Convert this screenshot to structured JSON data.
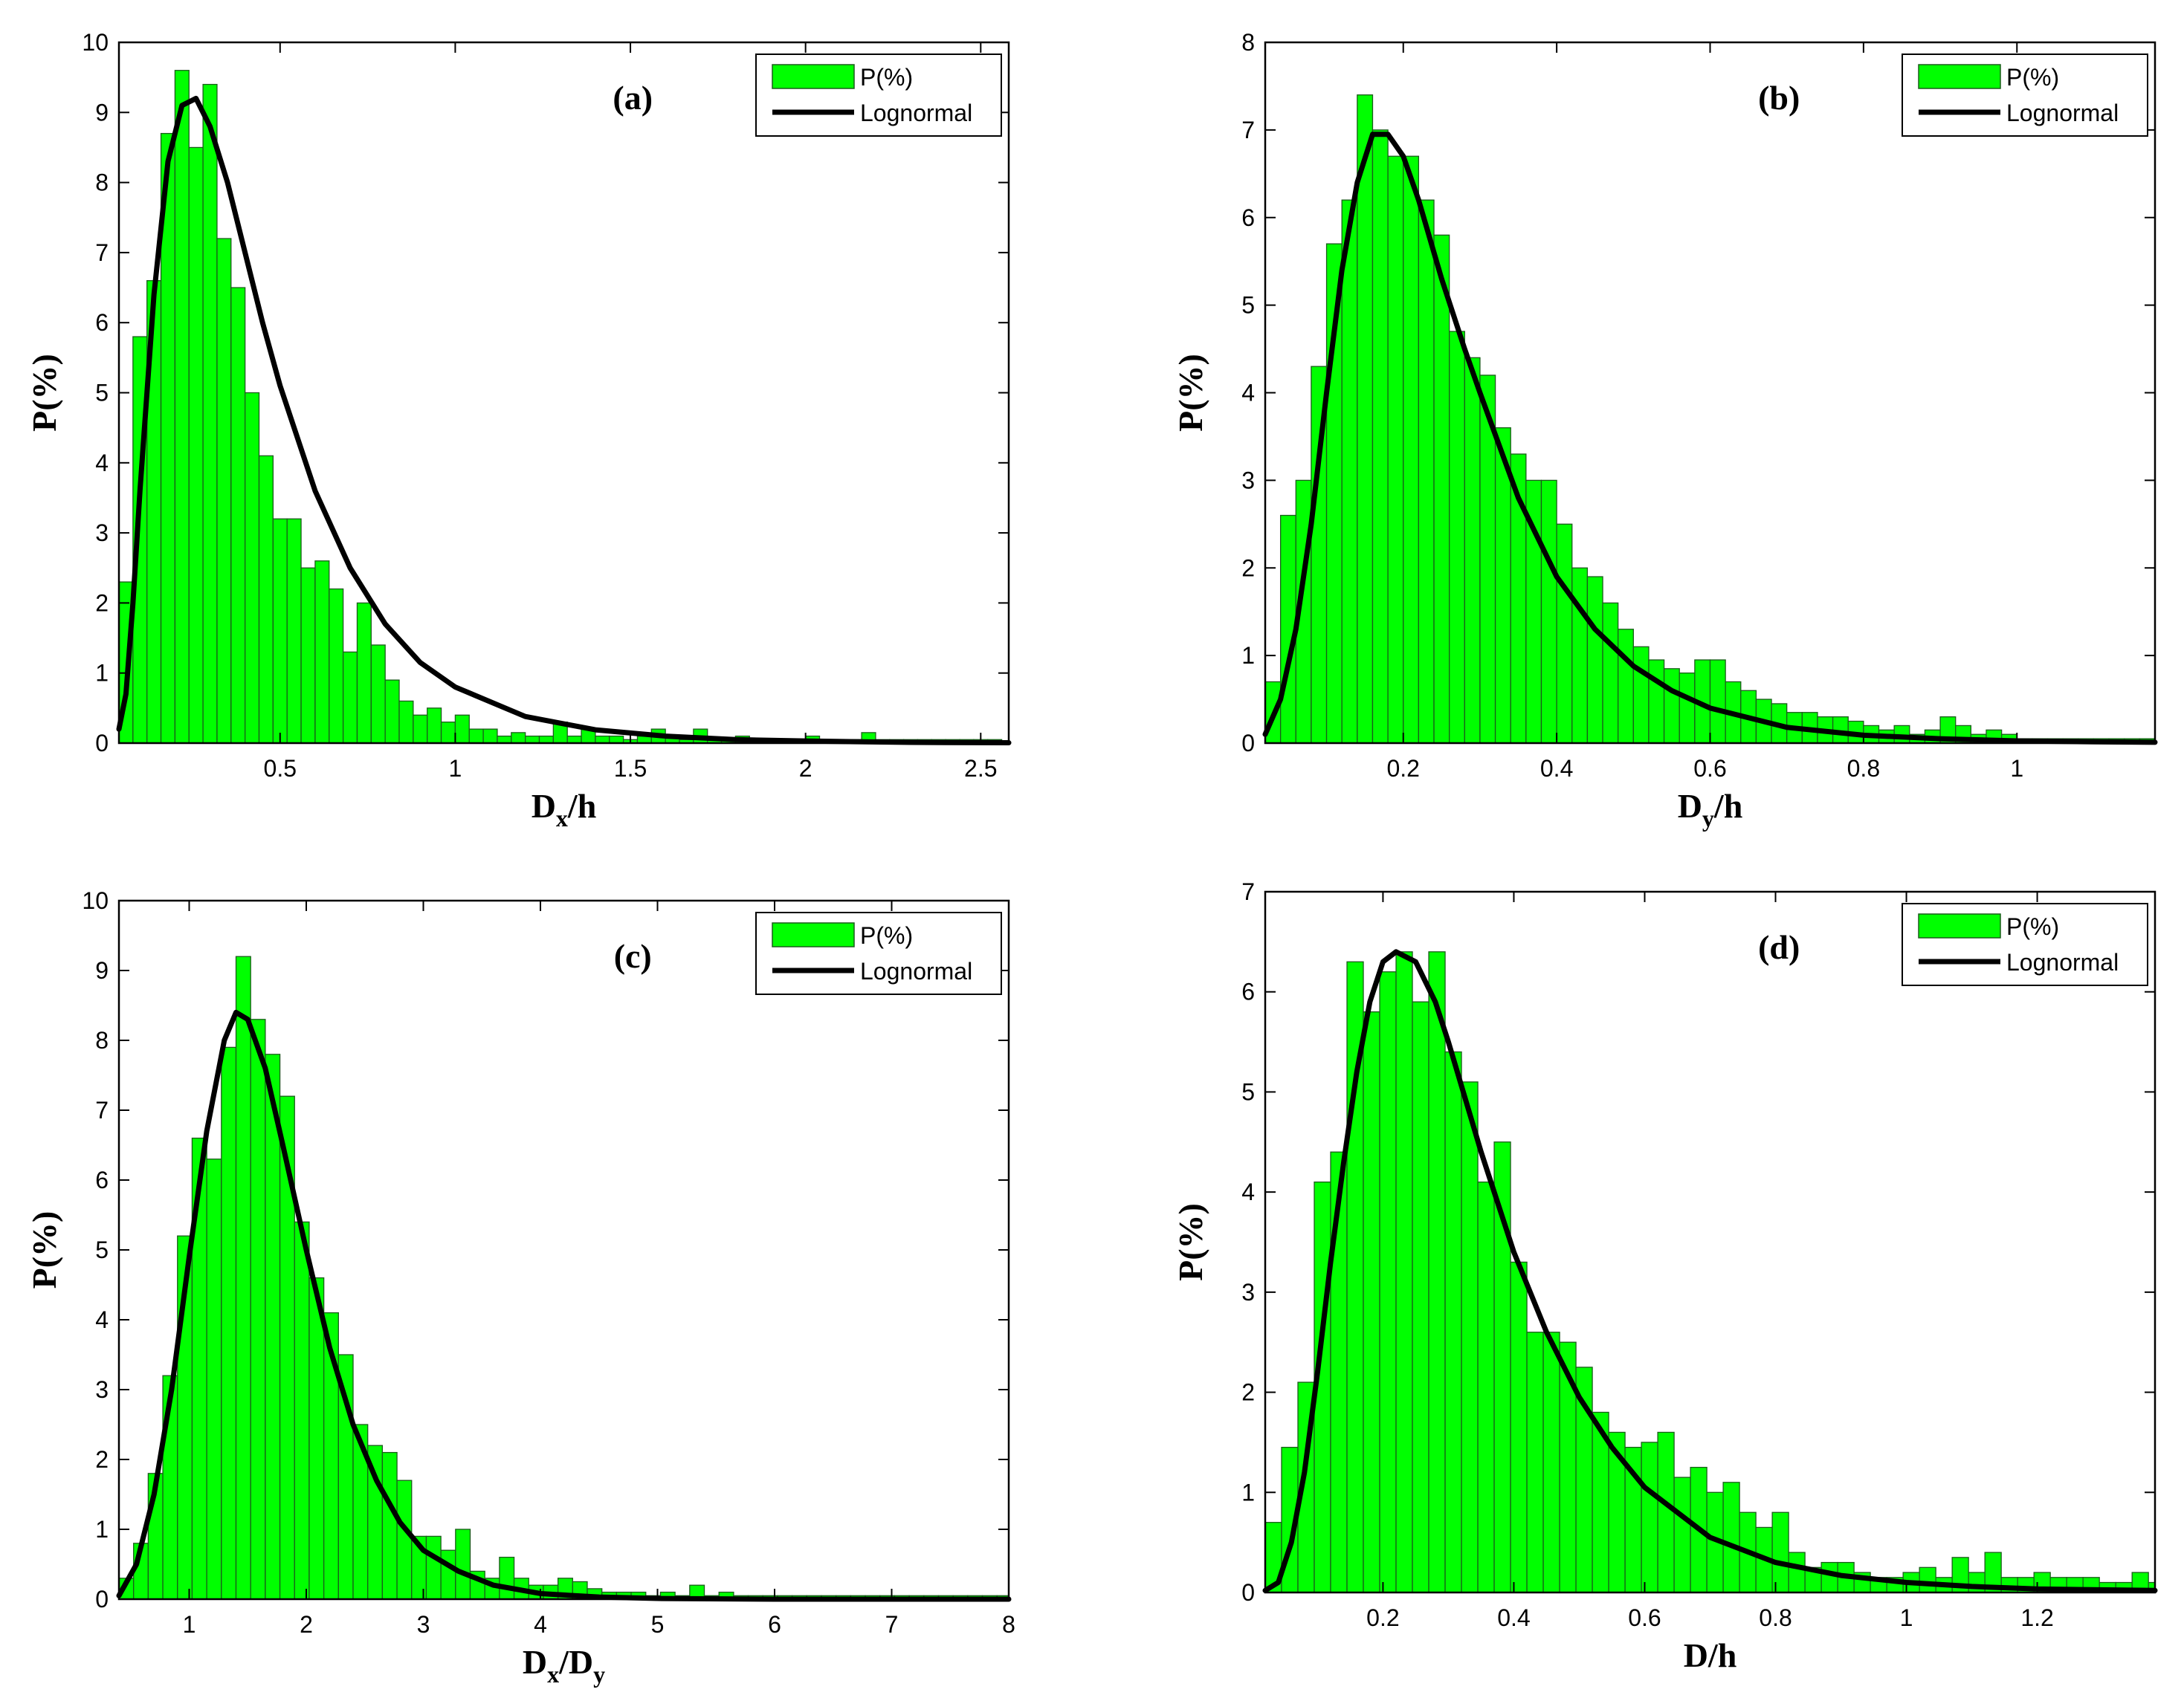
{
  "colors": {
    "bar_fill": "#00ff00",
    "bar_edge": "#1a5c1a",
    "curve": "#000000",
    "axis": "#000000"
  },
  "chart_data": [
    {
      "type": "bar",
      "panel_label": "(a)",
      "xlabel_main": "D",
      "xlabel_sub": "x",
      "xlabel_tail": "/h",
      "xlabel_sub2": "",
      "ylabel": "P(%)",
      "xlim": [
        0.04,
        2.58
      ],
      "ylim": [
        0,
        10
      ],
      "xticks": [
        0.5,
        1,
        1.5,
        2,
        2.5
      ],
      "xtick_labels": [
        "0.5",
        "1",
        "1.5",
        "2",
        "2.5"
      ],
      "yticks": [
        0,
        1,
        2,
        3,
        4,
        5,
        6,
        7,
        8,
        9,
        10
      ],
      "ytick_labels": [
        "0",
        "1",
        "2",
        "3",
        "4",
        "5",
        "6",
        "7",
        "8",
        "9",
        "10"
      ],
      "legend": {
        "bar_label": "P(%)",
        "line_label": "Lognormal",
        "position": "top-right"
      },
      "series": [
        {
          "name": "P(%)",
          "kind": "hist",
          "bin_start": 0.04,
          "bin_width": 0.04,
          "values": [
            2.3,
            5.8,
            6.6,
            8.7,
            9.6,
            8.5,
            9.4,
            7.2,
            6.5,
            5.0,
            4.1,
            3.2,
            3.2,
            2.5,
            2.6,
            2.2,
            1.3,
            2.0,
            1.4,
            0.9,
            0.6,
            0.4,
            0.5,
            0.3,
            0.4,
            0.2,
            0.2,
            0.1,
            0.15,
            0.1,
            0.1,
            0.3,
            0.1,
            0.2,
            0.1,
            0.1,
            0.05,
            0.1,
            0.2,
            0.1,
            0.05,
            0.2,
            0.05,
            0.05,
            0.1,
            0.05,
            0.05,
            0.05,
            0.05,
            0.1,
            0.05,
            0.05,
            0.05,
            0.15,
            0.05,
            0.05,
            0.05,
            0.05,
            0.05,
            0.05,
            0.05,
            0.05,
            0.05
          ]
        },
        {
          "name": "Lognormal",
          "kind": "line",
          "points": [
            [
              0.04,
              0.2
            ],
            [
              0.06,
              0.7
            ],
            [
              0.08,
              2.0
            ],
            [
              0.1,
              3.6
            ],
            [
              0.14,
              6.4
            ],
            [
              0.18,
              8.3
            ],
            [
              0.22,
              9.1
            ],
            [
              0.26,
              9.2
            ],
            [
              0.3,
              8.8
            ],
            [
              0.35,
              8.0
            ],
            [
              0.4,
              7.0
            ],
            [
              0.45,
              6.0
            ],
            [
              0.5,
              5.1
            ],
            [
              0.6,
              3.6
            ],
            [
              0.7,
              2.5
            ],
            [
              0.8,
              1.7
            ],
            [
              0.9,
              1.15
            ],
            [
              1.0,
              0.8
            ],
            [
              1.2,
              0.38
            ],
            [
              1.4,
              0.19
            ],
            [
              1.6,
              0.1
            ],
            [
              1.8,
              0.05
            ],
            [
              2.0,
              0.03
            ],
            [
              2.3,
              0.01
            ],
            [
              2.58,
              0.005
            ]
          ]
        }
      ]
    },
    {
      "type": "bar",
      "panel_label": "(b)",
      "xlabel_main": "D",
      "xlabel_sub": "y",
      "xlabel_tail": "/h",
      "xlabel_sub2": "",
      "ylabel": "P(%)",
      "xlim": [
        0.02,
        1.18
      ],
      "ylim": [
        0,
        8
      ],
      "xticks": [
        0.2,
        0.4,
        0.6,
        0.8,
        1
      ],
      "xtick_labels": [
        "0.2",
        "0.4",
        "0.6",
        "0.8",
        "1"
      ],
      "yticks": [
        0,
        1,
        2,
        3,
        4,
        5,
        6,
        7,
        8
      ],
      "ytick_labels": [
        "0",
        "1",
        "2",
        "3",
        "4",
        "5",
        "6",
        "7",
        "8"
      ],
      "legend": {
        "bar_label": "P(%)",
        "line_label": "Lognormal",
        "position": "top-right"
      },
      "series": [
        {
          "name": "P(%)",
          "kind": "hist",
          "bin_start": 0.02,
          "bin_width": 0.02,
          "values": [
            0.7,
            2.6,
            3.0,
            4.3,
            5.7,
            6.2,
            7.4,
            7.0,
            6.7,
            6.7,
            6.2,
            5.8,
            4.7,
            4.4,
            4.2,
            3.6,
            3.3,
            3.0,
            3.0,
            2.5,
            2.0,
            1.9,
            1.6,
            1.3,
            1.1,
            0.95,
            0.85,
            0.8,
            0.95,
            0.95,
            0.7,
            0.6,
            0.5,
            0.45,
            0.35,
            0.35,
            0.3,
            0.3,
            0.25,
            0.2,
            0.15,
            0.2,
            0.1,
            0.15,
            0.3,
            0.2,
            0.1,
            0.15,
            0.1,
            0.05,
            0.05,
            0.05,
            0.05,
            0.05,
            0.05,
            0.05,
            0.05,
            0.05
          ]
        },
        {
          "name": "Lognormal",
          "kind": "line",
          "points": [
            [
              0.02,
              0.1
            ],
            [
              0.04,
              0.5
            ],
            [
              0.06,
              1.3
            ],
            [
              0.08,
              2.5
            ],
            [
              0.1,
              4.0
            ],
            [
              0.12,
              5.4
            ],
            [
              0.14,
              6.4
            ],
            [
              0.16,
              6.95
            ],
            [
              0.18,
              6.95
            ],
            [
              0.2,
              6.7
            ],
            [
              0.22,
              6.2
            ],
            [
              0.25,
              5.3
            ],
            [
              0.28,
              4.5
            ],
            [
              0.3,
              4.0
            ],
            [
              0.35,
              2.8
            ],
            [
              0.4,
              1.9
            ],
            [
              0.45,
              1.3
            ],
            [
              0.5,
              0.88
            ],
            [
              0.55,
              0.6
            ],
            [
              0.6,
              0.4
            ],
            [
              0.7,
              0.18
            ],
            [
              0.8,
              0.09
            ],
            [
              0.9,
              0.05
            ],
            [
              1.0,
              0.025
            ],
            [
              1.1,
              0.015
            ],
            [
              1.18,
              0.01
            ]
          ]
        }
      ]
    },
    {
      "type": "bar",
      "panel_label": "(c)",
      "xlabel_main": "D",
      "xlabel_sub": "x",
      "xlabel_tail": "/D",
      "xlabel_sub2": "y",
      "ylabel": "P(%)",
      "xlim": [
        0.4,
        8
      ],
      "ylim": [
        0,
        10
      ],
      "xticks": [
        1,
        2,
        3,
        4,
        5,
        6,
        7,
        8
      ],
      "xtick_labels": [
        "1",
        "2",
        "3",
        "4",
        "5",
        "6",
        "7",
        "8"
      ],
      "yticks": [
        0,
        1,
        2,
        3,
        4,
        5,
        6,
        7,
        8,
        9,
        10
      ],
      "ytick_labels": [
        "0",
        "1",
        "2",
        "3",
        "4",
        "5",
        "6",
        "7",
        "8",
        "9",
        "10"
      ],
      "legend": {
        "bar_label": "P(%)",
        "line_label": "Lognormal",
        "position": "top-right"
      },
      "series": [
        {
          "name": "P(%)",
          "kind": "hist",
          "bin_start": 0.4,
          "bin_width": 0.125,
          "values": [
            0.3,
            0.8,
            1.8,
            3.2,
            5.2,
            6.6,
            6.3,
            7.9,
            9.2,
            8.3,
            7.8,
            7.2,
            5.4,
            4.6,
            4.1,
            3.5,
            2.5,
            2.2,
            2.1,
            1.7,
            0.9,
            0.9,
            0.7,
            1.0,
            0.4,
            0.3,
            0.6,
            0.3,
            0.2,
            0.2,
            0.3,
            0.25,
            0.15,
            0.1,
            0.1,
            0.1,
            0.05,
            0.1,
            0.05,
            0.2,
            0.05,
            0.1,
            0.05,
            0.05,
            0.05,
            0.05,
            0.05,
            0.05,
            0.05,
            0.05,
            0.05,
            0.05,
            0.05,
            0.05,
            0.05,
            0.05,
            0.05,
            0.05,
            0.05,
            0.05,
            0.05
          ]
        },
        {
          "name": "Lognormal",
          "kind": "line",
          "points": [
            [
              0.4,
              0.05
            ],
            [
              0.55,
              0.5
            ],
            [
              0.7,
              1.5
            ],
            [
              0.85,
              3.0
            ],
            [
              1.0,
              4.9
            ],
            [
              1.15,
              6.7
            ],
            [
              1.3,
              8.0
            ],
            [
              1.4,
              8.4
            ],
            [
              1.5,
              8.3
            ],
            [
              1.65,
              7.6
            ],
            [
              1.8,
              6.5
            ],
            [
              2.0,
              5.0
            ],
            [
              2.2,
              3.6
            ],
            [
              2.4,
              2.5
            ],
            [
              2.6,
              1.7
            ],
            [
              2.8,
              1.1
            ],
            [
              3.0,
              0.7
            ],
            [
              3.3,
              0.4
            ],
            [
              3.6,
              0.2
            ],
            [
              4.0,
              0.08
            ],
            [
              4.5,
              0.03
            ],
            [
              5.0,
              0.01
            ],
            [
              6.0,
              0.0
            ],
            [
              8.0,
              0.0
            ]
          ]
        }
      ]
    },
    {
      "type": "bar",
      "panel_label": "(d)",
      "xlabel_main": "D/h",
      "xlabel_sub": "",
      "xlabel_tail": "",
      "xlabel_sub2": "",
      "ylabel": "P(%)",
      "xlim": [
        0.02,
        1.38
      ],
      "ylim": [
        0,
        7
      ],
      "xticks": [
        0.2,
        0.4,
        0.6,
        0.8,
        1,
        1.2
      ],
      "xtick_labels": [
        "0.2",
        "0.4",
        "0.6",
        "0.8",
        "1",
        "1.2"
      ],
      "yticks": [
        0,
        1,
        2,
        3,
        4,
        5,
        6,
        7
      ],
      "ytick_labels": [
        "0",
        "1",
        "2",
        "3",
        "4",
        "5",
        "6",
        "7"
      ],
      "legend": {
        "bar_label": "P(%)",
        "line_label": "Lognormal",
        "position": "top-right"
      },
      "series": [
        {
          "name": "P(%)",
          "kind": "hist",
          "bin_start": 0.02,
          "bin_width": 0.025,
          "values": [
            0.7,
            1.45,
            2.1,
            4.1,
            4.4,
            6.3,
            5.8,
            6.2,
            6.4,
            5.9,
            6.4,
            5.4,
            5.1,
            4.1,
            4.5,
            3.3,
            2.6,
            2.6,
            2.5,
            2.25,
            1.8,
            1.6,
            1.45,
            1.5,
            1.6,
            1.15,
            1.25,
            1.0,
            1.1,
            0.8,
            0.65,
            0.8,
            0.4,
            0.25,
            0.3,
            0.3,
            0.2,
            0.15,
            0.15,
            0.2,
            0.25,
            0.15,
            0.35,
            0.2,
            0.4,
            0.15,
            0.15,
            0.2,
            0.15,
            0.15,
            0.15,
            0.1,
            0.1,
            0.2,
            0.1,
            0.1,
            0.15
          ]
        },
        {
          "name": "Lognormal",
          "kind": "line",
          "points": [
            [
              0.02,
              0.02
            ],
            [
              0.04,
              0.1
            ],
            [
              0.06,
              0.5
            ],
            [
              0.08,
              1.2
            ],
            [
              0.1,
              2.2
            ],
            [
              0.12,
              3.3
            ],
            [
              0.14,
              4.3
            ],
            [
              0.16,
              5.2
            ],
            [
              0.18,
              5.9
            ],
            [
              0.2,
              6.3
            ],
            [
              0.22,
              6.4
            ],
            [
              0.25,
              6.3
            ],
            [
              0.28,
              5.9
            ],
            [
              0.3,
              5.5
            ],
            [
              0.35,
              4.4
            ],
            [
              0.4,
              3.4
            ],
            [
              0.45,
              2.6
            ],
            [
              0.5,
              1.95
            ],
            [
              0.55,
              1.45
            ],
            [
              0.6,
              1.05
            ],
            [
              0.7,
              0.55
            ],
            [
              0.8,
              0.3
            ],
            [
              0.9,
              0.17
            ],
            [
              1.0,
              0.1
            ],
            [
              1.1,
              0.06
            ],
            [
              1.2,
              0.035
            ],
            [
              1.38,
              0.02
            ]
          ]
        }
      ]
    }
  ]
}
